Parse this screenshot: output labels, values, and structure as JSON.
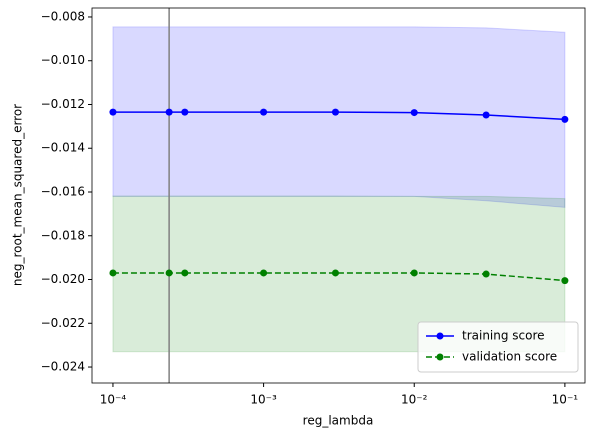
{
  "chart_data": {
    "type": "line",
    "xlabel": "reg_lambda",
    "ylabel": "neg_root_mean_squared_error",
    "xscale": "log",
    "x": [
      0.0001,
      0.000236,
      0.0003,
      0.001,
      0.003,
      0.01,
      0.03,
      0.1
    ],
    "series": [
      {
        "name": "training score",
        "color": "#0000ff",
        "linestyle": "solid",
        "values": [
          -0.01235,
          -0.01235,
          -0.01235,
          -0.01235,
          -0.01235,
          -0.01237,
          -0.01248,
          -0.01268
        ],
        "band_upper": [
          -0.00845,
          -0.00845,
          -0.00845,
          -0.00845,
          -0.00845,
          -0.00845,
          -0.0085,
          -0.0087
        ],
        "band_lower": [
          -0.0162,
          -0.0162,
          -0.0162,
          -0.0162,
          -0.0162,
          -0.0162,
          -0.0164,
          -0.0167
        ]
      },
      {
        "name": "validation score",
        "color": "#008000",
        "linestyle": "dashed",
        "values": [
          -0.0197,
          -0.0197,
          -0.0197,
          -0.0197,
          -0.0197,
          -0.0197,
          -0.01975,
          -0.02005
        ],
        "band_upper": [
          -0.01618,
          -0.01618,
          -0.01618,
          -0.01618,
          -0.01618,
          -0.0162,
          -0.0162,
          -0.0163
        ],
        "band_lower": [
          -0.0233,
          -0.0233,
          -0.0233,
          -0.0233,
          -0.0233,
          -0.0233,
          -0.0233,
          -0.0233
        ]
      }
    ],
    "vline": 0.000236,
    "vline_color": "#808080",
    "xlim": [
      7.26e-05,
      0.136
    ],
    "ylim": [
      -0.02473,
      -0.00759
    ],
    "xticks": [
      {
        "value": 0.0001,
        "label": "10⁻⁴"
      },
      {
        "value": 0.001,
        "label": "10⁻³"
      },
      {
        "value": 0.01,
        "label": "10⁻²"
      },
      {
        "value": 0.1,
        "label": "10⁻¹"
      }
    ],
    "yticks": [
      {
        "value": -0.024,
        "label": "−0.024"
      },
      {
        "value": -0.022,
        "label": "−0.022"
      },
      {
        "value": -0.02,
        "label": "−0.020"
      },
      {
        "value": -0.018,
        "label": "−0.018"
      },
      {
        "value": -0.016,
        "label": "−0.016"
      },
      {
        "value": -0.014,
        "label": "−0.014"
      },
      {
        "value": -0.012,
        "label": "−0.012"
      },
      {
        "value": -0.01,
        "label": "−0.010"
      },
      {
        "value": -0.008,
        "label": "−0.008"
      }
    ],
    "legend": "lower right"
  }
}
